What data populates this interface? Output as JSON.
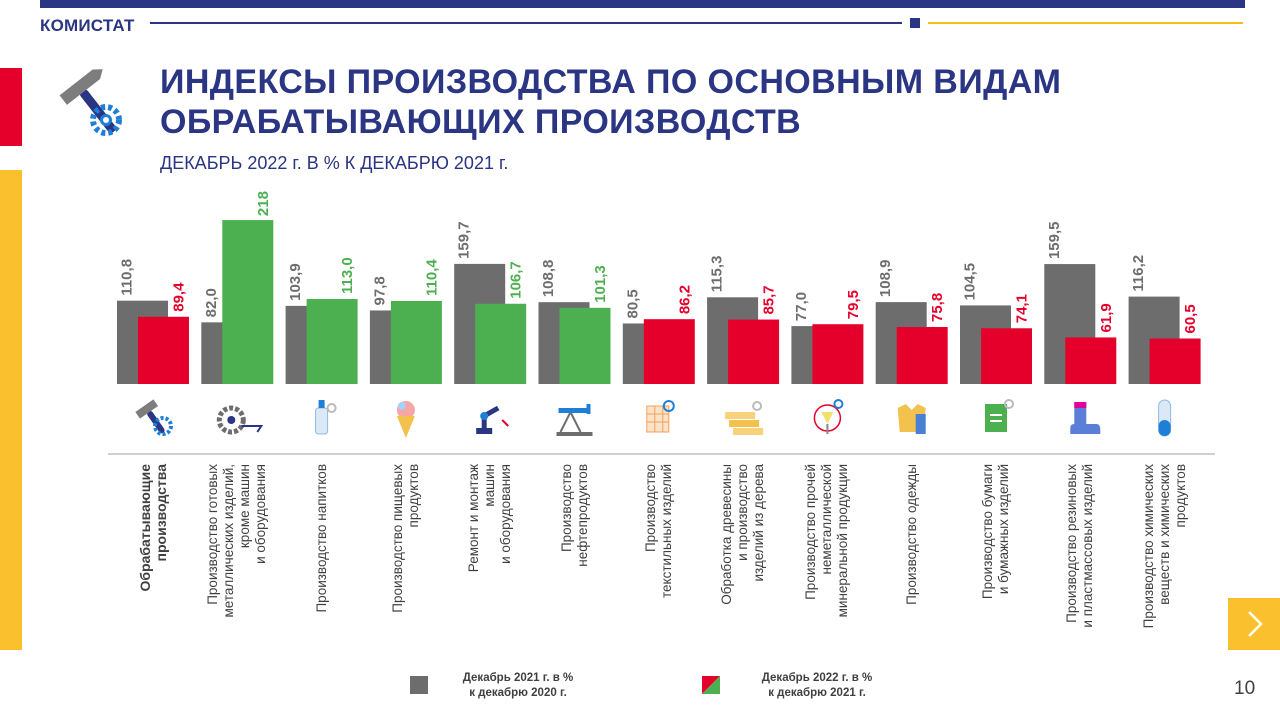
{
  "header": {
    "brand": "КОМИСТАТ"
  },
  "title_line1": "ИНДЕКСЫ ПРОИЗВОДСТВА ПО ОСНОВНЫМ ВИДАМ",
  "title_line2": "ОБРАБАТЫВАЮЩИХ ПРОИЗВОДСТВ",
  "subtitle": "ДЕКАБРЬ 2022 г. В % К ДЕКАБРЮ 2021 г.",
  "colors": {
    "navy": "#2a3583",
    "gray": "#6d6d6d",
    "red": "#e4002b",
    "green": "#4cb050",
    "yellow": "#fbc02d"
  },
  "chart_data": {
    "type": "bar",
    "categories": [
      "Обрабатывающие производства",
      "Производство готовых металлических изделий, кроме машин и оборудования",
      "Производство напитков",
      "Производство пищевых продуктов",
      "Ремонт и монтаж машин и оборудования",
      "Производство нефтепродуктов",
      "Производство текстильных изделий",
      "Обработка древесины и производство изделий из дерева",
      "Производство прочей неметаллической минеральной продукции",
      "Производство одежды",
      "Производство бумаги и бумажных изделий",
      "Производство резиновых и пластмассовых изделий",
      "Производство химических веществ и химических продуктов"
    ],
    "category_labels": [
      "Обрабатывающие\nпроизводства",
      "Производство готовых\nметаллических изделий,\nкроме машин\nи оборудования",
      "Производство напитков",
      "Производство пищевых\nпродуктов",
      "Ремонт и монтаж\nмашин\nи оборудования",
      "Производство\nнефтепродуктов",
      "Производство\nтекстильных изделий",
      "Обработка древесины\nи производство\nизделий из дерева",
      "Производство прочей\nнеметаллической\nминеральной продукции",
      "Производство одежды",
      "Производство бумаги\nи бумажных изделий",
      "Производство резиновых\nи пластмассовых изделий",
      "Производство химических\nвеществ и химических\nпродуктов"
    ],
    "series": [
      {
        "name": "Декабрь 2021 г. в % к декабрю 2020 г.",
        "values": [
          110.8,
          82.0,
          103.9,
          97.8,
          159.7,
          108.8,
          80.5,
          115.3,
          77.0,
          108.9,
          104.5,
          159.5,
          116.2
        ],
        "labels": [
          "110,8",
          "82,0",
          "103,9",
          "97,8",
          "159,7",
          "108,8",
          "80,5",
          "115,3",
          "77,0",
          "108,9",
          "104,5",
          "159,5",
          "116,2"
        ],
        "color": "#6d6d6d"
      },
      {
        "name": "Декабрь 2022 г. в % к декабрю 2021 г.",
        "values": [
          89.4,
          218,
          113.0,
          110.4,
          106.7,
          101.3,
          86.2,
          85.7,
          79.5,
          75.8,
          74.1,
          61.9,
          60.5
        ],
        "labels": [
          "89,4",
          "218",
          "113,0",
          "110,4",
          "106,7",
          "101,3",
          "86,2",
          "85,7",
          "79,5",
          "75,8",
          "74,1",
          "61,9",
          "60,5"
        ],
        "colors": [
          "#e4002b",
          "#4cb050",
          "#4cb050",
          "#4cb050",
          "#4cb050",
          "#4cb050",
          "#e4002b",
          "#e4002b",
          "#e4002b",
          "#e4002b",
          "#e4002b",
          "#e4002b",
          "#e4002b"
        ]
      }
    ],
    "icons": [
      "hammer-gear-icon",
      "gears-icon",
      "bottle-icon",
      "ice-cream-icon",
      "robot-arm-icon",
      "oil-pump-icon",
      "textile-icon",
      "wood-planks-icon",
      "glass-icon",
      "clothes-icon",
      "paper-icon",
      "rubber-boot-icon",
      "test-tube-icon"
    ]
  },
  "legend": {
    "item1": {
      "line1": "Декабрь 2021 г. в %",
      "line2": "к декабрю 2020 г."
    },
    "item2": {
      "line1": "Декабрь 2022 г. в %",
      "line2": "к декабрю 2021 г."
    }
  },
  "page_number": "10"
}
